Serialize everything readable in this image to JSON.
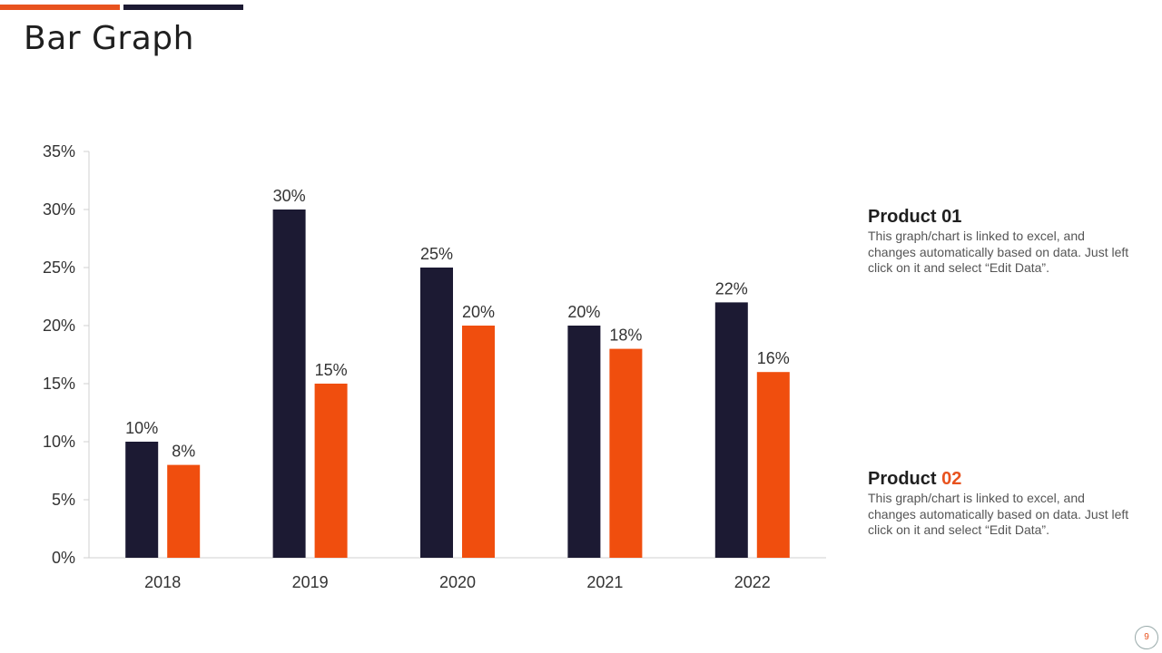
{
  "title": "Bar Graph",
  "colors": {
    "product_01": "#1c1a33",
    "product_02": "#f04e0e",
    "accent_orange": "#e8521e",
    "accent_navy": "#1c1a33"
  },
  "chart_data": {
    "type": "bar",
    "title": "",
    "xlabel": "",
    "ylabel": "",
    "categories": [
      "2018",
      "2019",
      "2020",
      "2021",
      "2022"
    ],
    "series": [
      {
        "name": "Product 01",
        "values": [
          10,
          30,
          25,
          20,
          22
        ],
        "labels": [
          "10%",
          "30%",
          "25%",
          "20%",
          "22%"
        ]
      },
      {
        "name": "Product 02",
        "values": [
          8,
          15,
          20,
          18,
          16
        ],
        "labels": [
          "8%",
          "15%",
          "20%",
          "18%",
          "16%"
        ]
      }
    ],
    "ylim": [
      0,
      35
    ],
    "yticks": [
      0,
      5,
      10,
      15,
      20,
      25,
      30,
      35
    ],
    "ytick_labels": [
      "0%",
      "5%",
      "10%",
      "15%",
      "20%",
      "25%",
      "30%",
      "35%"
    ],
    "grid": false,
    "legend": "none"
  },
  "products": [
    {
      "prefix": "Product ",
      "number": "01",
      "description": "This graph/chart is linked to excel, and changes automatically based on data. Just left click on it and select “Edit Data”."
    },
    {
      "prefix": "Product ",
      "number": "02",
      "description": "This graph/chart is linked to excel, and changes automatically based on data. Just left click on it and select “Edit Data”."
    }
  ],
  "page_number": "9"
}
